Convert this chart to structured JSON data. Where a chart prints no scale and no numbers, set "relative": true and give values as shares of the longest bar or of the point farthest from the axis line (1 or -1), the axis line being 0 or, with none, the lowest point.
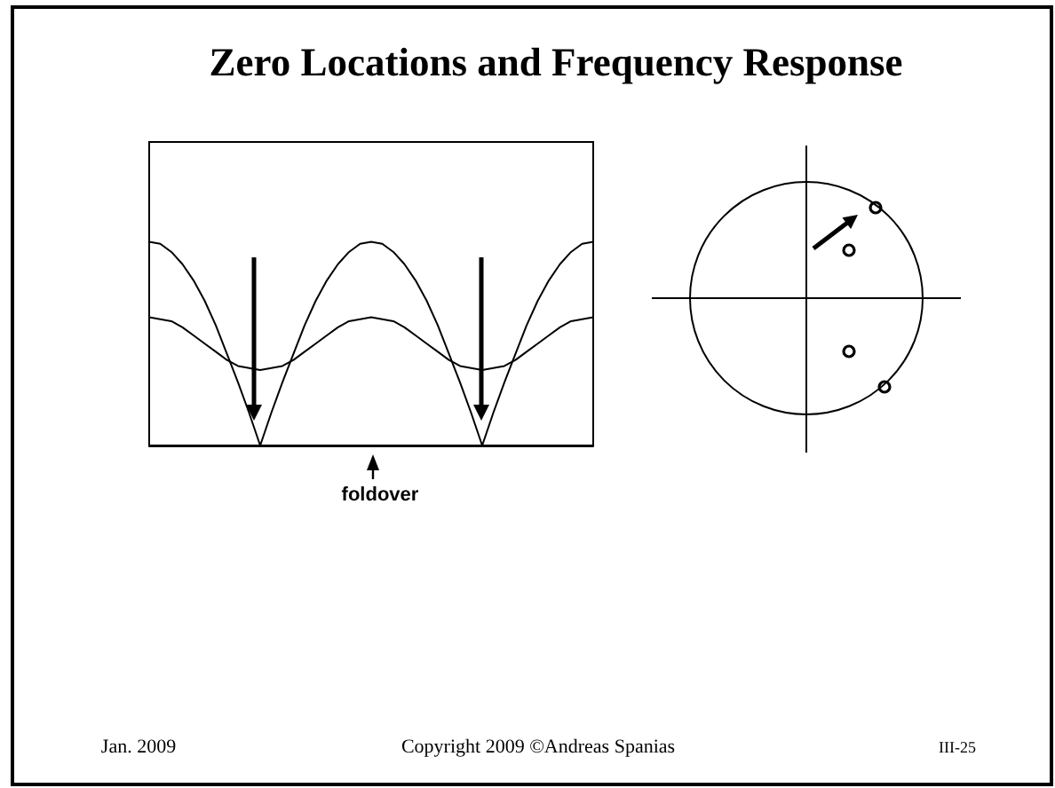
{
  "chart_data": {
    "type": "line",
    "title": "Zero Locations and Frequency Response",
    "categories": [
      null,
      null,
      null,
      null,
      null,
      null,
      null,
      null,
      null,
      null,
      null,
      null,
      null,
      null,
      null,
      null,
      null,
      null,
      null,
      null,
      null,
      null,
      null,
      null,
      null,
      null,
      null,
      null,
      null,
      null,
      null,
      null,
      null,
      null,
      null,
      null,
      null,
      null,
      null,
      null,
      null
    ],
    "relative": true,
    "marker": "none",
    "series": [
      {
        "color": "#000000",
        "values": [
          1,
          0.99,
          0.95,
          0.89,
          0.81,
          0.71,
          0.59,
          0.45,
          0.31,
          0.16,
          0,
          0.16,
          0.31,
          0.45,
          0.59,
          0.71,
          0.81,
          0.89,
          0.95,
          0.99,
          1,
          0.99,
          0.95,
          0.89,
          0.81,
          0.71,
          0.59,
          0.45,
          0.31,
          0.16,
          0,
          0.16,
          0.31,
          0.45,
          0.59,
          0.71,
          0.81,
          0.89,
          0.95,
          0.99,
          1
        ]
      },
      {
        "color": "#000000",
        "values": [
          0.63,
          0.62,
          0.61,
          0.58,
          0.54,
          0.5,
          0.46,
          0.42,
          0.39,
          0.38,
          0.37,
          0.38,
          0.39,
          0.42,
          0.46,
          0.5,
          0.54,
          0.58,
          0.61,
          0.62,
          0.63,
          0.62,
          0.61,
          0.58,
          0.54,
          0.5,
          0.46,
          0.42,
          0.39,
          0.38,
          0.37,
          0.38,
          0.39,
          0.42,
          0.46,
          0.5,
          0.54,
          0.58,
          0.61,
          0.62,
          0.63
        ]
      }
    ],
    "annotations": [
      "foldover",
      "Jan. 2009",
      "Copyright 2009 ©Andreas Spanias",
      "III-25"
    ]
  }
}
